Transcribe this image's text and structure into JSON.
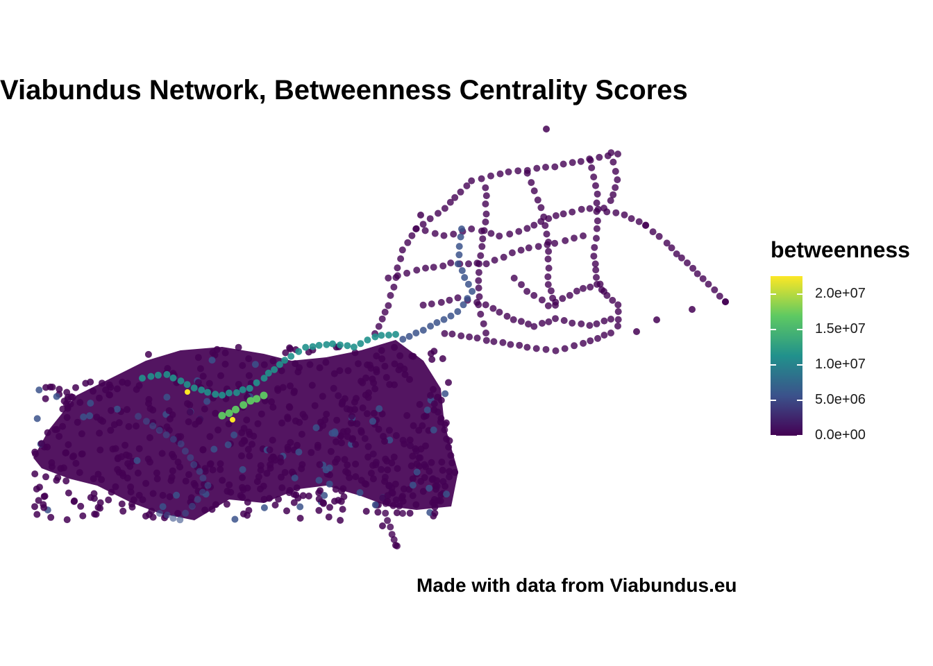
{
  "title": "Viabundus Network, Betweenness Centrality Scores",
  "caption": "Made with data from Viabundus.eu",
  "legend": {
    "title": "betweenness",
    "ticks": [
      {
        "value": 0,
        "label": "0.0e+00"
      },
      {
        "value": 5000000,
        "label": "5.0e+06"
      },
      {
        "value": 10000000,
        "label": "1.0e+07"
      },
      {
        "value": 15000000,
        "label": "1.5e+07"
      },
      {
        "value": 20000000,
        "label": "2.0e+07"
      }
    ],
    "max": 22500000,
    "palette": [
      "#440154",
      "#3b528b",
      "#21918c",
      "#5ec962",
      "#fde725"
    ]
  },
  "colors": {
    "low": "#440154",
    "mid": "#3b528b",
    "teal": "#21918c",
    "high": "#5ec962",
    "top": "#fde725"
  },
  "chart_data": {
    "type": "scatter",
    "title": "Viabundus Network, Betweenness Centrality Scores",
    "xlabel": "",
    "ylabel": "",
    "color_variable": "betweenness",
    "color_range": [
      0,
      22500000
    ],
    "grid": false,
    "legend_placement": "right"
  }
}
